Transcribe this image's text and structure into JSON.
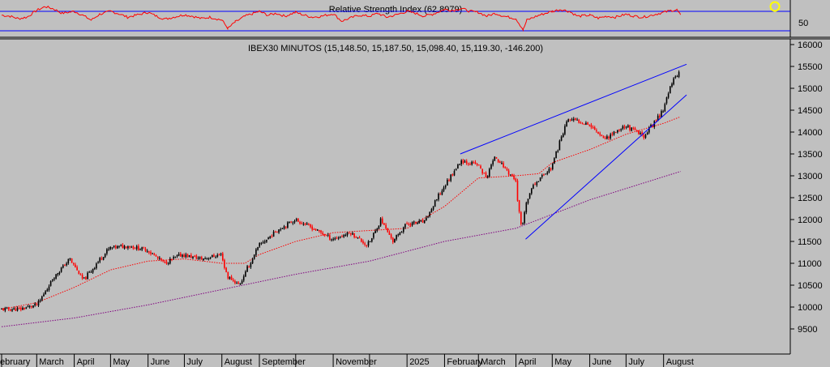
{
  "colors": {
    "background": "#c0c0c0",
    "rsi_line": "#ff0000",
    "candle_up": "#000000",
    "candle_down": "#ff0000",
    "ma_fast": "#ff0000",
    "ma_slow": "#800080",
    "trendline": "#0000ff",
    "highlight": "#ffff00"
  },
  "chart_data": [
    {
      "type": "line",
      "title": "Relative Strength Index (62.8979)",
      "y_ticks": [
        50
      ],
      "reference_levels": [
        70,
        30
      ],
      "ylim": [
        20,
        90
      ],
      "series": [
        {
          "x": [
            "2024-02-01",
            "2024-02-08",
            "2024-02-15",
            "2024-02-22",
            "2024-03-01",
            "2024-03-08",
            "2024-03-15",
            "2024-03-22",
            "2024-04-01",
            "2024-04-08",
            "2024-04-15",
            "2024-04-22",
            "2024-05-01",
            "2024-05-08",
            "2024-05-15",
            "2024-05-22",
            "2024-06-01",
            "2024-06-08",
            "2024-06-15",
            "2024-06-22",
            "2024-07-01",
            "2024-07-08",
            "2024-07-15",
            "2024-07-22",
            "2024-08-01",
            "2024-08-06",
            "2024-08-12",
            "2024-08-20",
            "2024-09-01",
            "2024-09-08",
            "2024-09-15",
            "2024-09-22",
            "2024-10-01",
            "2024-10-08",
            "2024-10-15",
            "2024-10-22",
            "2024-11-01",
            "2024-11-08",
            "2024-11-15",
            "2024-11-22",
            "2024-12-01",
            "2024-12-08",
            "2024-12-15",
            "2024-12-22",
            "2025-01-01",
            "2025-01-08",
            "2025-01-15",
            "2025-01-22",
            "2025-02-01",
            "2025-02-08",
            "2025-02-15",
            "2025-02-22",
            "2025-03-01",
            "2025-03-08",
            "2025-03-15",
            "2025-03-22",
            "2025-04-01",
            "2025-04-07",
            "2025-04-10",
            "2025-04-20",
            "2025-05-01",
            "2025-05-08",
            "2025-05-15",
            "2025-05-22",
            "2025-06-01",
            "2025-06-08",
            "2025-06-15",
            "2025-06-22",
            "2025-07-01",
            "2025-07-08",
            "2025-07-15",
            "2025-07-22",
            "2025-08-01",
            "2025-08-08",
            "2025-08-12",
            "2025-08-15"
          ],
          "values": [
            62,
            60,
            55,
            58,
            72,
            80,
            75,
            66,
            70,
            62,
            52,
            64,
            70,
            65,
            58,
            62,
            68,
            60,
            54,
            58,
            63,
            60,
            55,
            58,
            52,
            35,
            48,
            60,
            70,
            62,
            66,
            60,
            68,
            62,
            58,
            60,
            65,
            50,
            56,
            62,
            60,
            66,
            58,
            62,
            70,
            66,
            60,
            64,
            74,
            72,
            76,
            70,
            68,
            60,
            66,
            60,
            55,
            32,
            52,
            62,
            70,
            74,
            70,
            60,
            62,
            56,
            60,
            58,
            64,
            60,
            58,
            62,
            68,
            72,
            73,
            63
          ]
        }
      ]
    },
    {
      "type": "candlestick",
      "title": "IBEX30 MINUTOS (15,148.50, 15,187.50, 15,098.40, 15,119.30, -146.200)",
      "x_tick_labels": [
        "ebruary",
        "March",
        "April",
        "May",
        "June",
        "July",
        "August",
        "September",
        "November",
        "2025",
        "February",
        "March",
        "April",
        "May",
        "June",
        "July",
        "August"
      ],
      "y_ticks": [
        9500,
        10000,
        10500,
        11000,
        11500,
        12000,
        12500,
        13000,
        13500,
        14000,
        14500,
        15000,
        15500,
        16000
      ],
      "ylim": [
        9200,
        16100
      ],
      "close_path": {
        "x": [
          "2024-02-01",
          "2024-02-15",
          "2024-03-01",
          "2024-03-15",
          "2024-03-28",
          "2024-04-08",
          "2024-04-19",
          "2024-04-30",
          "2024-05-15",
          "2024-05-31",
          "2024-06-14",
          "2024-06-28",
          "2024-07-15",
          "2024-07-31",
          "2024-08-05",
          "2024-08-15",
          "2024-08-31",
          "2024-09-15",
          "2024-09-30",
          "2024-10-15",
          "2024-10-31",
          "2024-11-15",
          "2024-11-29",
          "2024-12-10",
          "2024-12-20",
          "2024-12-31",
          "2025-01-15",
          "2025-01-31",
          "2025-02-14",
          "2025-02-28",
          "2025-03-07",
          "2025-03-14",
          "2025-03-31",
          "2025-04-04",
          "2025-04-07",
          "2025-04-09",
          "2025-04-15",
          "2025-04-30",
          "2025-05-13",
          "2025-05-30",
          "2025-06-13",
          "2025-06-30",
          "2025-07-15",
          "2025-07-31",
          "2025-08-08",
          "2025-08-13",
          "2025-08-15"
        ],
        "values": [
          9950,
          9950,
          10050,
          10700,
          11100,
          10600,
          11000,
          11350,
          11400,
          11300,
          11000,
          11200,
          11100,
          11200,
          10700,
          10500,
          11400,
          11750,
          12000,
          11800,
          11550,
          11700,
          11400,
          12000,
          11500,
          11900,
          11950,
          12750,
          13350,
          13250,
          12950,
          13450,
          12900,
          11900,
          11850,
          12400,
          12800,
          13200,
          14300,
          14200,
          13850,
          14150,
          13900,
          14500,
          15200,
          15350,
          15120
        ]
      },
      "overlays": [
        {
          "kind": "moving_average_fast",
          "style": "dotted",
          "x": [
            "2024-02-01",
            "2024-03-01",
            "2024-04-01",
            "2024-05-01",
            "2024-06-01",
            "2024-07-01",
            "2024-08-01",
            "2024-08-20",
            "2024-09-01",
            "2024-10-01",
            "2024-11-01",
            "2024-12-01",
            "2025-01-01",
            "2025-02-01",
            "2025-03-01",
            "2025-04-01",
            "2025-04-20",
            "2025-05-01",
            "2025-06-01",
            "2025-07-01",
            "2025-08-01",
            "2025-08-15"
          ],
          "values": [
            9950,
            10100,
            10450,
            10850,
            11050,
            11100,
            11000,
            11000,
            11200,
            11500,
            11700,
            11750,
            11800,
            12300,
            12950,
            13000,
            13050,
            13300,
            13600,
            13950,
            14200,
            14350
          ]
        },
        {
          "kind": "moving_average_slow",
          "style": "dotted",
          "x": [
            "2024-02-01",
            "2024-04-01",
            "2024-06-01",
            "2024-08-01",
            "2024-10-01",
            "2024-12-01",
            "2025-02-01",
            "2025-04-01",
            "2025-06-01",
            "2025-08-15"
          ],
          "values": [
            9550,
            9750,
            10050,
            10400,
            10750,
            11050,
            11500,
            11800,
            12450,
            13100
          ]
        },
        {
          "kind": "trendline_upper",
          "x": [
            "2025-02-14",
            "2025-08-20"
          ],
          "values": [
            13500,
            15550
          ]
        },
        {
          "kind": "trendline_lower",
          "x": [
            "2025-04-09",
            "2025-08-20"
          ],
          "values": [
            11550,
            14850
          ]
        }
      ]
    }
  ]
}
